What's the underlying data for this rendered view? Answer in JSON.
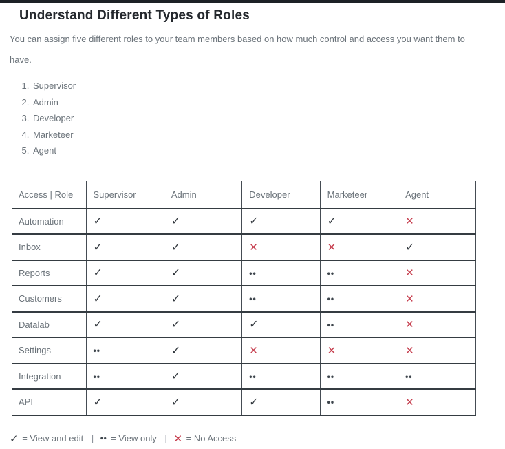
{
  "page": {
    "title": "Understand Different Types of Roles",
    "description": "You can assign five different roles to your team members based on how much control and access you want them to have."
  },
  "roles_list": [
    "Supervisor",
    "Admin",
    "Developer",
    "Marketeer",
    "Agent"
  ],
  "table": {
    "headers": [
      "Access | Role",
      "Supervisor",
      "Admin",
      "Developer",
      "Marketeer",
      "Agent"
    ],
    "rows": [
      {
        "feature": "Automation",
        "values": [
          "check",
          "check",
          "check",
          "check",
          "cross"
        ]
      },
      {
        "feature": "Inbox",
        "values": [
          "check",
          "check",
          "cross",
          "cross",
          "check"
        ]
      },
      {
        "feature": "Reports",
        "values": [
          "check",
          "check",
          "dots",
          "dots",
          "cross"
        ]
      },
      {
        "feature": "Customers",
        "values": [
          "check",
          "check",
          "dots",
          "dots",
          "cross"
        ]
      },
      {
        "feature": "Datalab",
        "values": [
          "check",
          "check",
          "check",
          "dots",
          "cross"
        ]
      },
      {
        "feature": "Settings",
        "values": [
          "dots",
          "check",
          "cross",
          "cross",
          "cross"
        ]
      },
      {
        "feature": "Integration",
        "values": [
          "dots",
          "check",
          "dots",
          "dots",
          "dots"
        ]
      },
      {
        "feature": "API",
        "values": [
          "check",
          "check",
          "check",
          "dots",
          "cross"
        ]
      }
    ]
  },
  "symbols": {
    "check": "✓",
    "cross": "✕",
    "dots": "••"
  },
  "legend": {
    "check_label": "= View and edit",
    "dots_label": "= View only",
    "cross_label": "= No Access",
    "separator": "|"
  },
  "colors": {
    "accent_cross": "#c63f4f",
    "check_dark": "#33393f",
    "body_text": "#6b737a",
    "heading_text": "#24282d",
    "border_dark": "#353c42",
    "top_bar": "#1c2126"
  }
}
